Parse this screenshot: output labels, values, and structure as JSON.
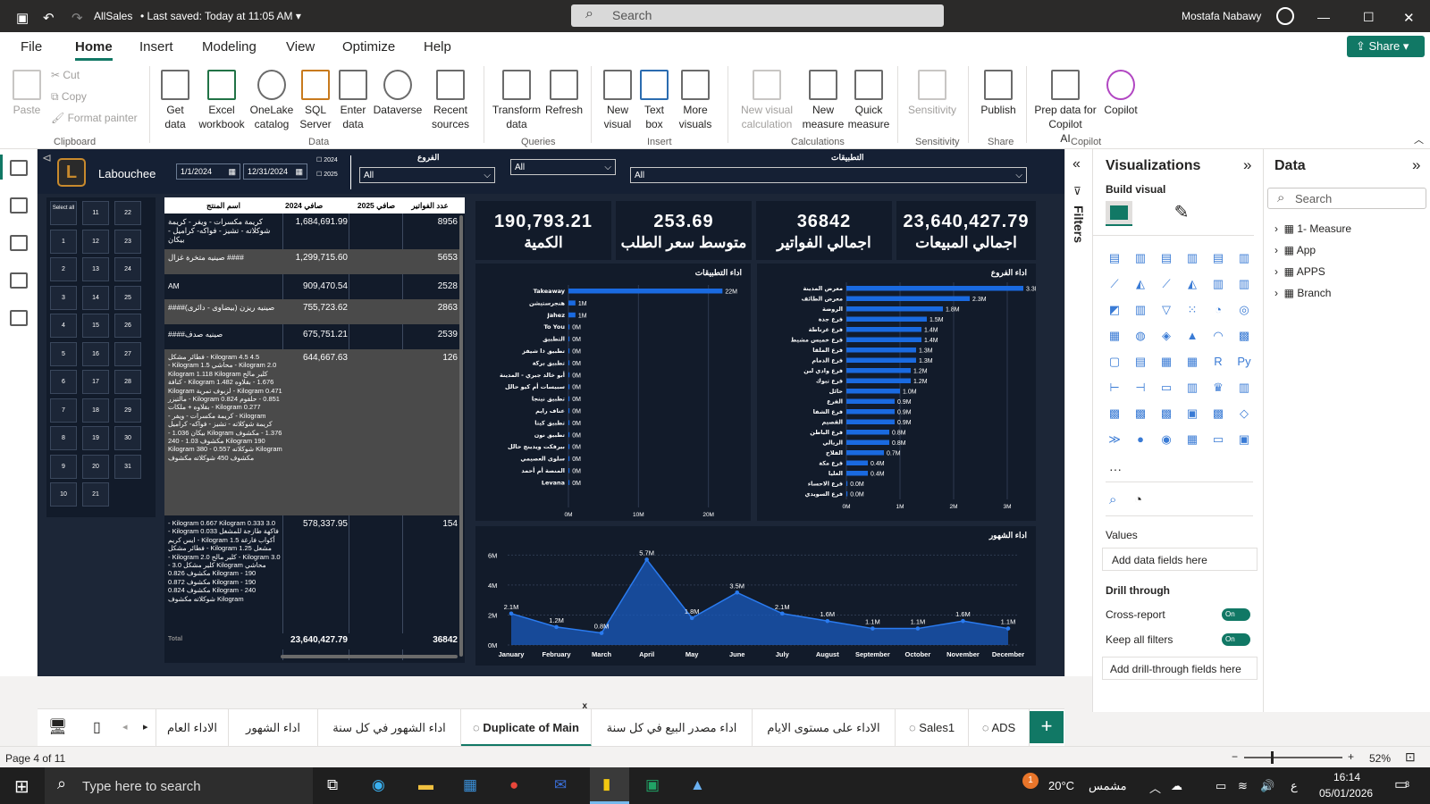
{
  "titlebar": {
    "app_name": "AllSales",
    "saved_status": "Last saved: Today at 11:05 AM",
    "search_placeholder": "Search",
    "user_name": "Mostafa Nabawy"
  },
  "menu": {
    "items": [
      "File",
      "Home",
      "Insert",
      "Modeling",
      "View",
      "Optimize",
      "Help"
    ],
    "share_label": "Share"
  },
  "ribbon": {
    "clipboard": {
      "paste": "Paste",
      "cut": "Cut",
      "copy": "Copy",
      "format_painter": "Format painter",
      "group": "Clipboard"
    },
    "data": {
      "get_data": "Get data",
      "excel": "Excel workbook",
      "onelake": "OneLake catalog",
      "sql": "SQL Server",
      "enter": "Enter data",
      "dataverse": "Dataverse",
      "recent": "Recent sources",
      "group": "Data"
    },
    "queries": {
      "transform": "Transform data",
      "refresh": "Refresh",
      "group": "Queries"
    },
    "insert": {
      "new_visual": "New visual",
      "text_box": "Text box",
      "more_visuals": "More visuals",
      "group": "Insert"
    },
    "calculations": {
      "new_visual_calc": "New visual calculation",
      "new_measure": "New measure",
      "quick_measure": "Quick measure",
      "group": "Calculations"
    },
    "sensitivity": {
      "label": "Sensitivity",
      "group": "Sensitivity"
    },
    "share": {
      "publish": "Publish",
      "group": "Share"
    },
    "copilot": {
      "prep": "Prep data for Copilot",
      "copilot": "Copilot",
      "ai": "AI",
      "group": "Copilot"
    }
  },
  "report": {
    "brand": "Labouchee",
    "date_from": "1/1/2024",
    "date_to": "12/31/2024",
    "years": [
      "2024",
      "2025"
    ],
    "branch_slicer": {
      "title": "الفروع",
      "value": "All"
    },
    "mid_slicer": {
      "value": "All"
    },
    "apps_slicer": {
      "title": "التطبيقات",
      "value": "All"
    },
    "calendar": {
      "select_all": "Select all",
      "days": [
        "11",
        "22",
        "1",
        "12",
        "23",
        "2",
        "13",
        "24",
        "3",
        "14",
        "25",
        "4",
        "15",
        "26",
        "5",
        "16",
        "27",
        "6",
        "17",
        "28",
        "7",
        "18",
        "29",
        "8",
        "19",
        "30",
        "9",
        "20",
        "31",
        "10",
        "21"
      ]
    },
    "table": {
      "headers": [
        "اسم المنتج",
        "صافي 2024",
        "صافي 2025",
        "عدد الفواتير"
      ],
      "rows": [
        {
          "name": "كريمة مكسرات - ويفر - كريمة شوكلاته - تشيز - فواكه- كراميل - بيكان",
          "net": "1,684,691.99",
          "count": "8956"
        },
        {
          "name": "#### صينيه متخرة غزال",
          "net": "1,299,715.60",
          "count": "5653"
        },
        {
          "name": "AM",
          "net": "909,470.54",
          "count": "2528"
        },
        {
          "name": "صينيه ريزن (بيضاوى - دائرى)####",
          "net": "755,723.62",
          "count": "2863"
        },
        {
          "name": "صينيه صدف####",
          "net": "675,751.21",
          "count": "2539"
        },
        {
          "name": "4.5 Kilogram 4.5 - فطائر مشكل Kilogram 2.0 - محاشي Kilogram 1.5 - كلير مالح Kilogram 1.118 Kilogram 1.676 - بقلاوه Kilogram 1.482 - كنافة Kilogram 0.471 - لزبوف تمرية Kilogram 0.851 - حلقوم Kilogram 0.824 - مالتيزر Kilogram 0.277 - بقلاوه + ملكات Kilogram - كريمة مكسرات - ويفر - كريمة شوكلاته - تشيز - فواكه- كراميل 1.376 - مكشوف Kilogram بيكان 1.036 - 190 Kilogram مكشوف 1.03 - 240 Kilogram شوكلاته 0.557 - 380 Kilogram مكشوف 450 شوكلاته مكشوف",
          "net": "644,667.63",
          "count": "126"
        },
        {
          "name": "3.0 Kilogram 0.667 Kilogram 0.333 - فاكهة طازجة للمشغل Kilogram 0.033 - أكواب فارغة Kilogram 1.5 - ايس كريم مشعل Kilogram 1.25 - فطائر مشكل Kilogram 3.0 - كلير مالح Kilogram 2.0 - محاشي Kilogram كلير مشكل 3.0 - Kilogram - 190 مكشوف 0.826 Kilogram - 190 مكشوف 0.872 Kilogram - 240 مكشوف 0.824 Kilogram شوكلاته مكشوف",
          "net": "578,337.95",
          "count": "154"
        }
      ],
      "total_label": "Total",
      "total_net": "23,640,427.79",
      "total_count": "36842"
    },
    "kpis": [
      {
        "value": "190,793.21",
        "label": "الكمية"
      },
      {
        "value": "253.69",
        "label": "متوسط سعر الطلب"
      },
      {
        "value": "36842",
        "label": "اجمالي الفواتير"
      },
      {
        "value": "23,640,427.79",
        "label": "اجمالي المبيعات"
      }
    ]
  },
  "chart_data": [
    {
      "type": "bar",
      "title": "اداء التطبيقات",
      "categories": [
        "Takeaway",
        "هنجرستيشن",
        "Jahez",
        "To You",
        "التطبيق",
        "تطبيق ذا شيفز",
        "تطبيق بركة",
        "أبو خالد جبري - المدينة",
        "سبيسات أم كيو حالل",
        "تطبيق نينجا",
        "عناف رايم",
        "تطبيق كيتا",
        "تطبيق نون",
        "بيرفكت ويدينج حالل",
        "سلوى العصيمي",
        "المنصة أم أحمد",
        "Levana"
      ],
      "values": [
        22,
        1,
        1,
        0,
        0,
        0,
        0,
        0,
        0,
        0,
        0,
        0,
        0,
        0,
        0,
        0,
        0
      ],
      "data_labels": [
        "22M",
        "1M",
        "1M",
        "0M",
        "0M",
        "0M",
        "0M",
        "0M",
        "0M",
        "0M",
        "0M",
        "0M",
        "0M",
        "0M",
        "0M",
        "0M",
        "0M"
      ],
      "ticks": [
        "0M",
        "10M",
        "20M"
      ],
      "xlim": [
        0,
        24
      ]
    },
    {
      "type": "bar",
      "title": "اداء الفروع",
      "categories": [
        "معرض المدينة",
        "معرض الطائف",
        "الروضة",
        "فرع جدة",
        "فرع غرناطة",
        "فرع خميس مشيط",
        "فرع الملقا",
        "فرع الدمام",
        "فرع وادي لبن",
        "فرع تبوك",
        "حائل",
        "الفرع",
        "فرع الشفا",
        "القصيم",
        "فرع الباطن",
        "الريالي",
        "الفلاح",
        "فرع مكة",
        "العليا",
        "فرع الاحساء",
        "فرع السويدي"
      ],
      "values": [
        3.3,
        2.3,
        1.8,
        1.5,
        1.4,
        1.4,
        1.3,
        1.3,
        1.2,
        1.2,
        1.0,
        0.9,
        0.9,
        0.9,
        0.8,
        0.8,
        0.7,
        0.4,
        0.4,
        0.0,
        0.0
      ],
      "data_labels": [
        "3.3M",
        "2.3M",
        "1.8M",
        "1.5M",
        "1.4M",
        "1.4M",
        "1.3M",
        "1.3M",
        "1.2M",
        "1.2M",
        "1.0M",
        "0.9M",
        "0.9M",
        "0.9M",
        "0.8M",
        "0.8M",
        "0.7M",
        "0.4M",
        "0.4M",
        "0.0M",
        "0.0M"
      ],
      "ticks": [
        "0M",
        "1M",
        "2M",
        "3M"
      ],
      "xlim": [
        0,
        3.5
      ]
    },
    {
      "type": "area",
      "title": "اداء الشهور",
      "categories": [
        "January",
        "February",
        "March",
        "April",
        "May",
        "June",
        "July",
        "August",
        "September",
        "October",
        "November",
        "December"
      ],
      "values": [
        2.1,
        1.2,
        0.8,
        5.7,
        1.8,
        3.5,
        2.1,
        1.6,
        1.1,
        1.1,
        1.6,
        1.1
      ],
      "data_labels": [
        "2.1M",
        "1.2M",
        "0.8M",
        "5.7M",
        "1.8M",
        "3.5M",
        "2.1M",
        "1.6M",
        "1.1M",
        "1.1M",
        "1.6M",
        "1.1M"
      ],
      "yticks": [
        "0M",
        "2M",
        "4M",
        "6M"
      ],
      "ylim": [
        0,
        6.5
      ]
    }
  ],
  "viz": {
    "title": "Visualizations",
    "build_visual": "Build visual",
    "values": "Values",
    "add_fields": "Add data fields here",
    "drill_through": "Drill through",
    "cross_report": "Cross-report",
    "keep_filters": "Keep all filters",
    "toggle_on": "On",
    "add_drill": "Add drill-through fields here"
  },
  "filters": {
    "label": "Filters"
  },
  "datapane": {
    "title": "Data",
    "search_placeholder": "Search",
    "items": [
      "1- Measure",
      "App",
      "APPS",
      "Branch"
    ]
  },
  "tabs": [
    "الاداء العام",
    "اداء الشهور",
    "اداء الشهور في كل سنة",
    "Duplicate of Main",
    "اداء مصدر البيع في كل سنة",
    "الاداء على مستوى الايام",
    "Sales1",
    "ADS"
  ],
  "status": {
    "page": "Page 4 of 11",
    "zoom": "52%"
  },
  "taskbar": {
    "search_placeholder": "Type here to search",
    "weather": "20°C",
    "weather_label": "مشمس",
    "time": "16:14",
    "date": "05/01/2026",
    "notif_count": "3",
    "lang": "ع",
    "weather_badge": "1"
  }
}
